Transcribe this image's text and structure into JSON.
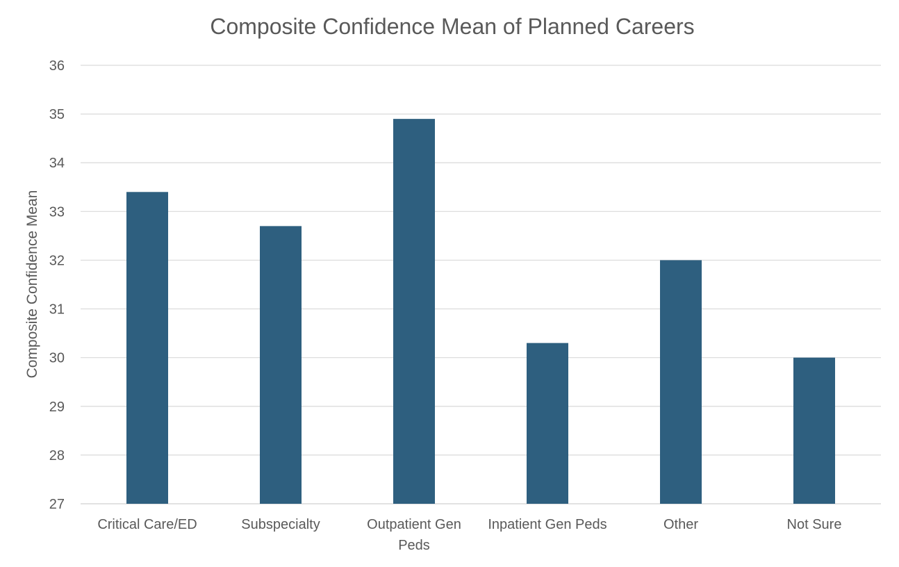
{
  "chart_data": {
    "type": "bar",
    "title": "Composite Confidence Mean of Planned Careers",
    "xlabel": "",
    "ylabel": "Composite Confidence Mean",
    "categories": [
      [
        "Critical Care/ED"
      ],
      [
        "Subspecialty"
      ],
      [
        "Outpatient Gen",
        "Peds"
      ],
      [
        "Inpatient Gen Peds"
      ],
      [
        "Other"
      ],
      [
        "Not Sure"
      ]
    ],
    "values": [
      33.4,
      32.7,
      34.9,
      30.3,
      32.0,
      30.0
    ],
    "ylim": [
      27,
      36
    ],
    "yticks": [
      "27",
      "28",
      "29",
      "30",
      "31",
      "32",
      "33",
      "34",
      "35",
      "36"
    ],
    "grid": true,
    "legend": "none",
    "colors": {
      "bar": "#2e5f7f",
      "grid": "#d9d9d9",
      "text": "#595959"
    }
  }
}
